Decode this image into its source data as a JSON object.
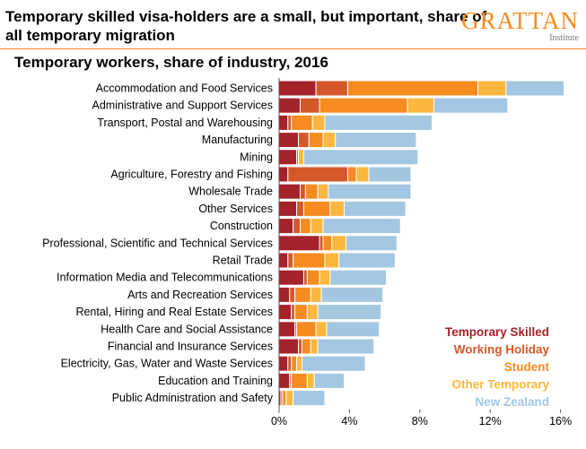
{
  "header": {
    "headline": "Temporary skilled visa-holders are a small, but important, share of all temporary migration",
    "logo_word": "GRATTAN",
    "logo_sub": "Institute"
  },
  "chart_data": {
    "type": "bar",
    "orientation": "horizontal",
    "stacked": true,
    "title": "Temporary workers, share of industry, 2016",
    "xlabel": "",
    "ylabel": "",
    "xlim": [
      0,
      16
    ],
    "x_ticks": [
      "0%",
      "4%",
      "8%",
      "12%",
      "16%"
    ],
    "grid": false,
    "legend_position": "bottom-right",
    "categories": [
      "Accommodation and Food Services",
      "Administrative and Support Services",
      "Transport, Postal and Warehousing",
      "Manufacturing",
      "Mining",
      "Agriculture, Forestry and Fishing",
      "Wholesale Trade",
      "Other Services",
      "Construction",
      "Professional, Scientific and Technical Services",
      "Retail Trade",
      "Information Media and Telecommunications",
      "Arts and Recreation Services",
      "Rental, Hiring and Real Estate Services",
      "Health Care and Social Assistance",
      "Financial and Insurance Services",
      "Electricity, Gas, Water and Waste Services",
      "Education and Training",
      "Public Administration and Safety"
    ],
    "series": [
      {
        "name": "Temporary Skilled",
        "color": "#A4232B",
        "values": [
          2.1,
          1.2,
          0.5,
          1.1,
          1.0,
          0.5,
          1.2,
          1.0,
          0.8,
          2.3,
          0.5,
          1.4,
          0.6,
          0.7,
          0.9,
          1.1,
          0.5,
          0.6,
          0.1
        ]
      },
      {
        "name": "Working Holiday",
        "color": "#D4582A",
        "values": [
          1.8,
          1.1,
          0.2,
          0.6,
          0.1,
          3.4,
          0.3,
          0.4,
          0.4,
          0.2,
          0.3,
          0.2,
          0.3,
          0.2,
          0.1,
          0.2,
          0.2,
          0.1,
          0.1
        ]
      },
      {
        "name": "Student",
        "color": "#F68B1F",
        "values": [
          7.4,
          5.0,
          1.2,
          0.8,
          0.0,
          0.5,
          0.7,
          1.5,
          0.6,
          0.5,
          1.8,
          0.7,
          0.9,
          0.7,
          1.1,
          0.5,
          0.3,
          0.9,
          0.2
        ]
      },
      {
        "name": "Other Temporary",
        "color": "#FDB73E",
        "values": [
          1.6,
          1.5,
          0.7,
          0.7,
          0.3,
          0.7,
          0.6,
          0.8,
          0.7,
          0.8,
          0.8,
          0.6,
          0.6,
          0.6,
          0.6,
          0.4,
          0.3,
          0.4,
          0.4
        ]
      },
      {
        "name": "New Zealand",
        "color": "#A3C7E2",
        "values": [
          3.3,
          4.2,
          6.1,
          4.6,
          6.5,
          2.4,
          4.7,
          3.5,
          4.4,
          2.9,
          3.2,
          3.2,
          3.5,
          3.6,
          3.0,
          3.2,
          3.6,
          1.7,
          1.8
        ]
      }
    ]
  }
}
